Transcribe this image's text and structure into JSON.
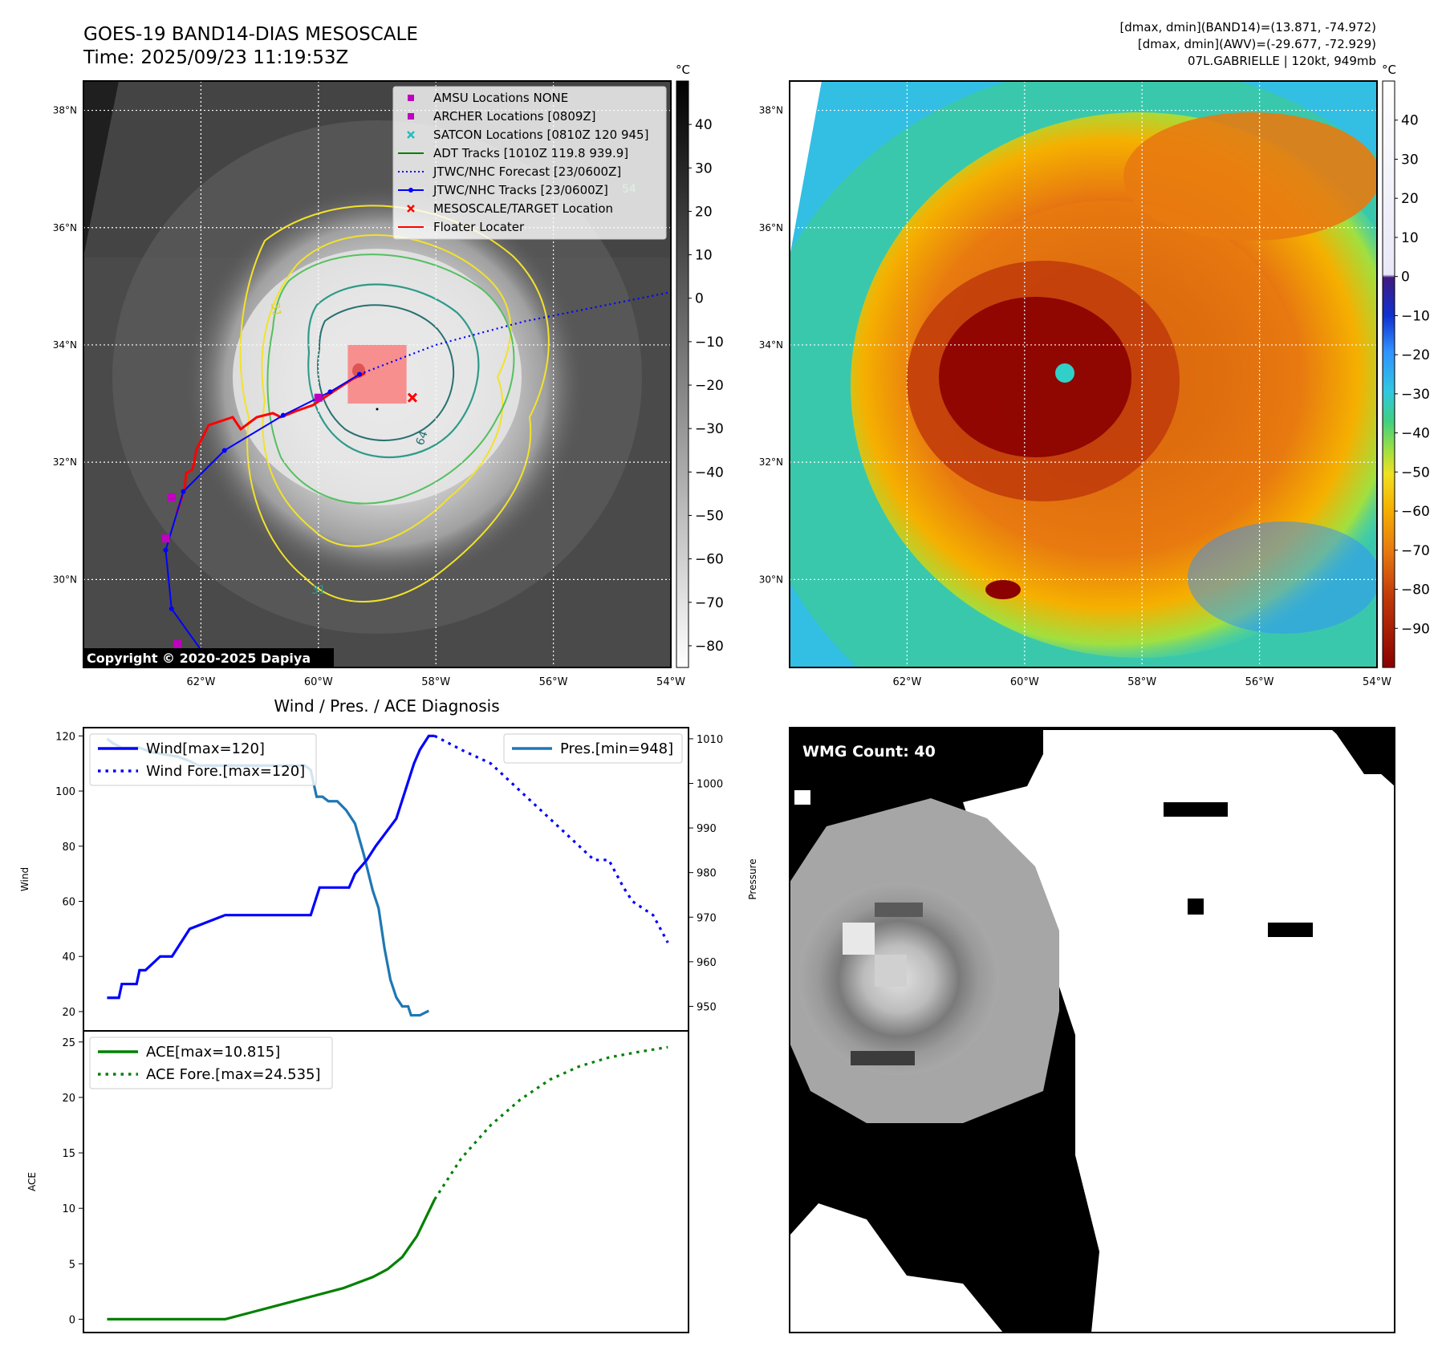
{
  "header": {
    "title_line1": "GOES-19 BAND14-DIAS MESOSCALE",
    "title_line2": "Time: 2025/09/23 11:19:53Z",
    "right_line1": "[dmax, dmin](BAND14)=(13.871, -74.972)",
    "right_line2": "[dmax, dmin](AWV)=(-29.677, -72.929)",
    "right_line3": "07L.GABRIELLE | 120kt, 949mb"
  },
  "map_axes": {
    "lat_labels": [
      "38°N",
      "36°N",
      "34°N",
      "32°N",
      "30°N"
    ],
    "lat_values": [
      38,
      36,
      34,
      32,
      30
    ],
    "lon_labels": [
      "62°W",
      "60°W",
      "58°W",
      "56°W",
      "54°W"
    ],
    "lon_values": [
      -62,
      -60,
      -58,
      -56,
      -54
    ],
    "lat_range": [
      28.5,
      38.5
    ],
    "lon_range": [
      -64,
      -54
    ]
  },
  "left_map": {
    "copyright": "Copyright © 2020-2025 Dapiya",
    "legend": [
      {
        "label": "AMSU Locations NONE",
        "marker": "square",
        "color": "#c000c0"
      },
      {
        "label": "ARCHER Locations [0809Z]",
        "marker": "square",
        "color": "#c000c0"
      },
      {
        "label": "SATCON Locations [0810Z 120 945]",
        "marker": "x",
        "color": "#1fbfbf"
      },
      {
        "label": "ADT Tracks [1010Z 119.8 939.9]",
        "marker": "line",
        "color": "#008000"
      },
      {
        "label": "JTWC/NHC Forecast [23/0600Z]",
        "marker": "dotted",
        "color": "#0000ff"
      },
      {
        "label": "JTWC/NHC Tracks [23/0600Z]",
        "marker": "line-dot",
        "color": "#0000ff"
      },
      {
        "label": "MESOSCALE/TARGET Location",
        "marker": "x",
        "color": "#ff0000"
      },
      {
        "label": "Floater Locater",
        "marker": "line",
        "color": "#ff0000"
      }
    ],
    "contour_labels": [
      "64",
      "64",
      "54",
      "31",
      "54",
      "31",
      "31"
    ],
    "colorbar_unit": "°C",
    "colorbar_ticks": [
      "40",
      "30",
      "20",
      "10",
      "0",
      "−10",
      "−20",
      "−30",
      "−40",
      "−50",
      "−60",
      "−70",
      "−80"
    ],
    "colorbar_values": [
      40,
      30,
      20,
      10,
      0,
      -10,
      -20,
      -30,
      -40,
      -50,
      -60,
      -70,
      -80
    ],
    "colorbar_range": [
      -85,
      50
    ],
    "nhc_track": [
      [
        -62.0,
        28.8
      ],
      [
        -62.5,
        29.5
      ],
      [
        -62.6,
        30.5
      ],
      [
        -62.3,
        31.5
      ],
      [
        -61.6,
        32.2
      ],
      [
        -60.6,
        32.8
      ],
      [
        -59.8,
        33.2
      ],
      [
        -59.3,
        33.5
      ]
    ],
    "nhc_forecast": [
      [
        -59.3,
        33.5
      ],
      [
        -58.0,
        34.0
      ],
      [
        -56.5,
        34.4
      ],
      [
        -55.0,
        34.7
      ],
      [
        -54.0,
        34.9
      ]
    ],
    "archer_points": [
      [
        -62.6,
        30.7
      ],
      [
        -62.5,
        31.4
      ],
      [
        -60.0,
        33.1
      ],
      [
        -62.4,
        28.9
      ]
    ],
    "target": [
      -58.4,
      33.1
    ],
    "target_box": {
      "lon": [
        -59.5,
        -58.5
      ],
      "lat": [
        33.0,
        34.0
      ]
    }
  },
  "right_map": {
    "colorbar_unit": "°C",
    "colorbar_ticks": [
      "40",
      "30",
      "20",
      "10",
      "0",
      "−10",
      "−20",
      "−30",
      "−40",
      "−50",
      "−60",
      "−70",
      "−80",
      "−90"
    ],
    "colorbar_values": [
      40,
      30,
      20,
      10,
      0,
      -10,
      -20,
      -30,
      -40,
      -50,
      -60,
      -70,
      -80,
      -90
    ],
    "colorbar_range": [
      -100,
      50
    ],
    "colors": [
      "#8b0000",
      "#c0390a",
      "#e87a10",
      "#f5b000",
      "#f0e020",
      "#a0e040",
      "#40d080",
      "#30c8e0",
      "#3090ff",
      "#1030d0",
      "#401a80",
      "#ffffff"
    ]
  },
  "wmg": {
    "label": "WMG Count: 40"
  },
  "chart_data": [
    {
      "type": "line",
      "title": "Wind / Pres. / ACE Diagnosis",
      "ylabel": "Wind",
      "ylim": [
        13,
        123
      ],
      "yticks": [
        20,
        40,
        60,
        80,
        100,
        120
      ],
      "legend": "top-left",
      "series": [
        {
          "name": "Wind[max=120]",
          "color": "#0000ff",
          "style": "solid",
          "x": [
            0,
            4,
            5,
            10,
            11,
            13,
            18,
            22,
            28,
            40,
            60,
            69,
            72,
            76,
            82,
            84,
            88,
            91,
            98,
            101,
            104,
            106,
            109,
            110,
            111
          ],
          "values": [
            25,
            25,
            30,
            30,
            35,
            35,
            40,
            40,
            50,
            55,
            55,
            55,
            65,
            65,
            65,
            70,
            75,
            80,
            90,
            100,
            110,
            115,
            120,
            120,
            120
          ]
        },
        {
          "name": "Wind Fore.[max=120]",
          "color": "#0000ff",
          "style": "dotted",
          "x": [
            111,
            120,
            130,
            140,
            150,
            160,
            165,
            170,
            175,
            178,
            185,
            190
          ],
          "values": [
            120,
            115,
            110,
            100,
            90,
            80,
            75,
            75,
            65,
            60,
            55,
            45
          ]
        }
      ]
    },
    {
      "type": "line",
      "ylabel": "Pressure",
      "ylim": [
        944.5,
        1012.5
      ],
      "yticks": [
        950,
        960,
        970,
        980,
        990,
        1000,
        1010
      ],
      "legend": "top-right",
      "series": [
        {
          "name": "Pres.[min=948]",
          "color": "#1f77b4",
          "style": "solid",
          "x": [
            0,
            2,
            5,
            11,
            15,
            24,
            28,
            31,
            34,
            38,
            46,
            60,
            67,
            69,
            71,
            73,
            75,
            78,
            81,
            84,
            87,
            90,
            92,
            94,
            96,
            98,
            100,
            102,
            103,
            104,
            106,
            109
          ],
          "values": [
            1010,
            1009,
            1008,
            1008,
            1007,
            1006,
            1005,
            1004,
            1004,
            1004,
            1004,
            1004,
            1004,
            1003,
            997,
            997,
            996,
            996,
            994,
            991,
            984,
            976,
            972,
            963,
            956,
            952,
            950,
            950,
            948,
            948,
            948,
            949
          ]
        }
      ]
    },
    {
      "type": "line",
      "ylabel": "ACE",
      "ylim": [
        -1.2,
        26
      ],
      "yticks": [
        0,
        5,
        10,
        15,
        20,
        25
      ],
      "legend": "top-left",
      "series": [
        {
          "name": "ACE[max=10.815]",
          "color": "#008000",
          "style": "solid",
          "x": [
            0,
            10,
            20,
            30,
            40,
            50,
            60,
            70,
            80,
            90,
            95,
            100,
            105,
            111
          ],
          "values": [
            0,
            0,
            0,
            0,
            0,
            0.7,
            1.4,
            2.1,
            2.8,
            3.8,
            4.5,
            5.6,
            7.5,
            10.815
          ]
        },
        {
          "name": "ACE Fore.[max=24.535]",
          "color": "#008000",
          "style": "dotted",
          "x": [
            111,
            120,
            130,
            140,
            150,
            160,
            170,
            180,
            190
          ],
          "values": [
            10.815,
            14.5,
            17.5,
            19.8,
            21.6,
            22.8,
            23.6,
            24.1,
            24.535
          ]
        }
      ]
    }
  ]
}
